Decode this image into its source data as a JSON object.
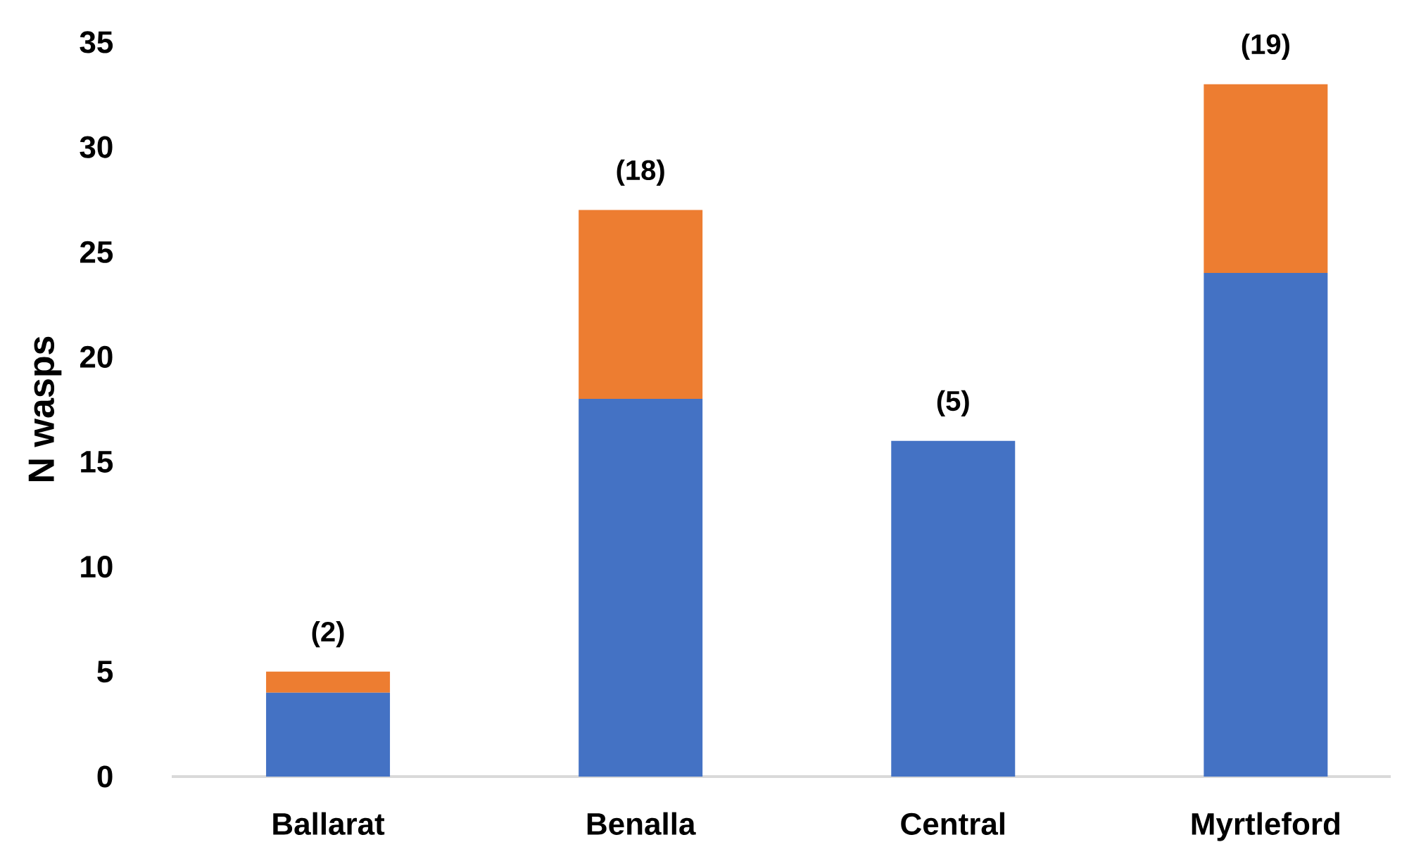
{
  "chart_data": {
    "type": "bar",
    "stacked": true,
    "ylabel": "N wasps",
    "categories": [
      "Ballarat",
      "Benalla",
      "Central",
      "Myrtleford"
    ],
    "series": [
      {
        "color": "#4472c4",
        "values": [
          4,
          18,
          16,
          24
        ]
      },
      {
        "color": "#ed7d31",
        "values": [
          1,
          9,
          0,
          9
        ]
      }
    ],
    "ylim": [
      0,
      35
    ],
    "yticks": [
      0,
      5,
      10,
      15,
      20,
      25,
      30,
      35
    ],
    "annotations": [
      {
        "text": "(2)",
        "x": "Ballarat",
        "y": 5
      },
      {
        "text": "(18)",
        "x": "Benalla",
        "y": 27
      },
      {
        "text": "(5)",
        "x": "Central",
        "y": 16
      },
      {
        "text": "(19)",
        "x": "Myrtleford",
        "y": 33
      }
    ]
  }
}
